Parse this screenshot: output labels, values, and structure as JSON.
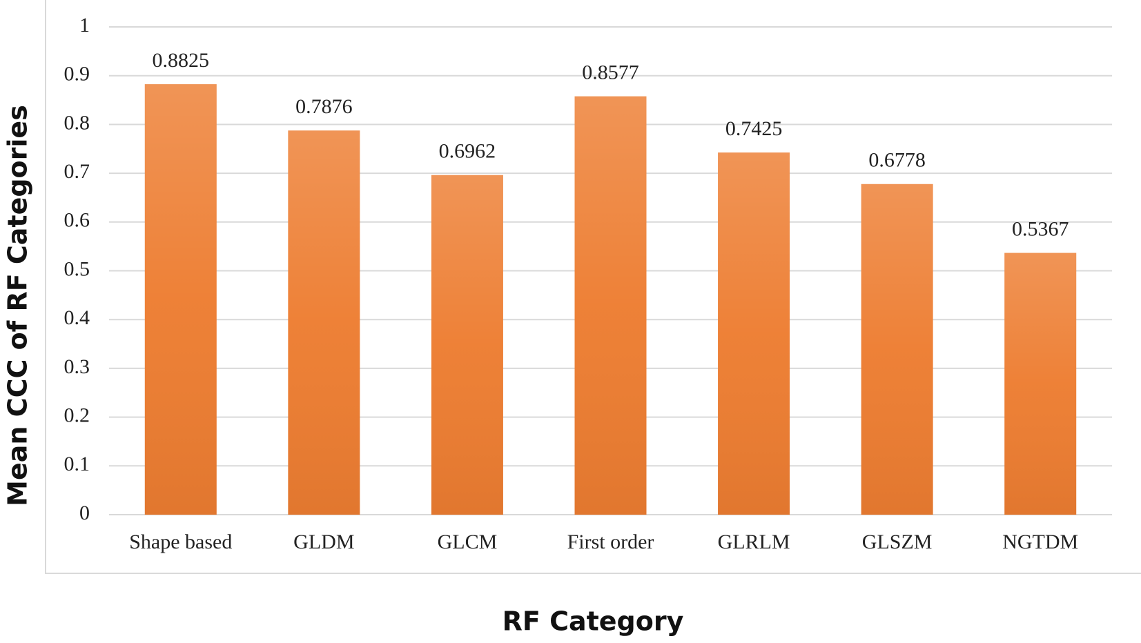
{
  "chart_data": {
    "type": "bar",
    "x_label": "RF Category",
    "y_label": "Mean CCC of RF Categories",
    "categories": [
      "Shape based",
      "GLDM",
      "GLCM",
      "First order",
      "GLRLM",
      "GLSZM",
      "NGTDM"
    ],
    "values": [
      0.8825,
      0.7876,
      0.6962,
      0.8577,
      0.7425,
      0.6778,
      0.5367
    ],
    "color": "#ed7d31",
    "ylim": [
      0,
      1
    ],
    "yticks": [
      0,
      0.1,
      0.2,
      0.3,
      0.4,
      0.5,
      0.6,
      0.7,
      0.8,
      0.9,
      1
    ],
    "grid": true
  }
}
